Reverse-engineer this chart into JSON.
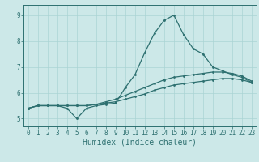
{
  "xlabel": "Humidex (Indice chaleur)",
  "xlim": [
    -0.5,
    23.5
  ],
  "ylim": [
    4.7,
    9.4
  ],
  "xticks": [
    0,
    1,
    2,
    3,
    4,
    5,
    6,
    7,
    8,
    9,
    10,
    11,
    12,
    13,
    14,
    15,
    16,
    17,
    18,
    19,
    20,
    21,
    22,
    23
  ],
  "yticks": [
    5,
    6,
    7,
    8,
    9
  ],
  "bg_color": "#cce8e8",
  "line_color": "#2d7070",
  "grid_color": "#aad4d4",
  "hours": [
    0,
    1,
    2,
    3,
    4,
    5,
    6,
    7,
    8,
    9,
    10,
    11,
    12,
    13,
    14,
    15,
    16,
    17,
    18,
    19,
    20,
    21,
    22,
    23
  ],
  "line1": [
    5.4,
    5.5,
    5.5,
    5.5,
    5.5,
    5.5,
    5.5,
    5.55,
    5.6,
    5.65,
    5.75,
    5.85,
    5.95,
    6.1,
    6.2,
    6.3,
    6.35,
    6.4,
    6.45,
    6.5,
    6.55,
    6.55,
    6.5,
    6.4
  ],
  "line2": [
    5.4,
    5.5,
    5.5,
    5.5,
    5.5,
    5.5,
    5.5,
    5.55,
    5.65,
    5.75,
    5.9,
    6.05,
    6.2,
    6.35,
    6.5,
    6.6,
    6.65,
    6.7,
    6.75,
    6.8,
    6.8,
    6.75,
    6.65,
    6.45
  ],
  "line3": [
    5.4,
    5.5,
    5.5,
    5.5,
    5.4,
    5.0,
    5.4,
    5.5,
    5.55,
    5.6,
    6.2,
    6.7,
    7.55,
    8.3,
    8.8,
    9.0,
    8.25,
    7.7,
    7.5,
    7.0,
    6.85,
    6.7,
    6.6,
    6.4
  ],
  "figsize": [
    3.2,
    2.0
  ],
  "dpi": 100,
  "spine_color": "#2d7070",
  "tick_fontsize": 5.5,
  "xlabel_fontsize": 7.0,
  "linewidth": 0.9,
  "markersize": 2.0
}
